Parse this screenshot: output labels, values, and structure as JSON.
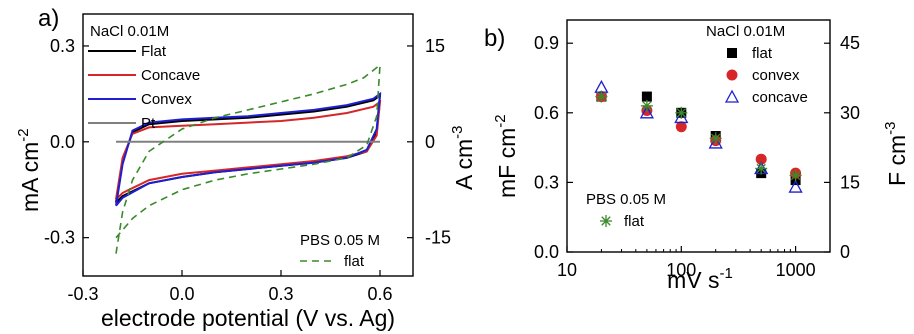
{
  "colors": {
    "flat": "#000000",
    "concave": "#d62728",
    "convex": "#1f1fd0",
    "pt": "#808080",
    "pbs": "#3a8a2a",
    "red_marker": "#d62728"
  },
  "chart_data": [
    {
      "type": "line",
      "panel_label": "a)",
      "xlabel": "electrode potential (V vs. Ag)",
      "ylabel": "mA cm",
      "ylabel_sup": "-2",
      "y2label": "A cm",
      "y2label_sup": "-3",
      "xlim": [
        -0.3,
        0.7
      ],
      "ylim": [
        -0.42,
        0.4
      ],
      "y2lim": [
        -21,
        20
      ],
      "xticks": [
        -0.3,
        0.0,
        0.3,
        0.6
      ],
      "xtick_labels": [
        "-0.3",
        "0.0",
        "0.3",
        "0.6"
      ],
      "yticks": [
        -0.3,
        0.0,
        0.3
      ],
      "ytick_labels": [
        "-0.3",
        "0.0",
        "0.3"
      ],
      "y2ticks": [
        -15,
        0,
        15
      ],
      "y2tick_labels": [
        "-15",
        "0",
        "15"
      ],
      "legend_title": "NaCl 0.01M",
      "legend2_title": "PBS 0.05 M",
      "series": [
        {
          "name": "Flat",
          "style": "solid",
          "color_key": "flat",
          "upper": [
            [
              -0.2,
              -0.19
            ],
            [
              -0.18,
              -0.06
            ],
            [
              -0.15,
              0.03
            ],
            [
              -0.1,
              0.055
            ],
            [
              0.0,
              0.065
            ],
            [
              0.1,
              0.07
            ],
            [
              0.2,
              0.075
            ],
            [
              0.3,
              0.085
            ],
            [
              0.4,
              0.095
            ],
            [
              0.5,
              0.11
            ],
            [
              0.58,
              0.13
            ],
            [
              0.6,
              0.145
            ]
          ],
          "lower": [
            [
              0.6,
              0.145
            ],
            [
              0.59,
              0.03
            ],
            [
              0.56,
              -0.03
            ],
            [
              0.5,
              -0.05
            ],
            [
              0.4,
              -0.065
            ],
            [
              0.3,
              -0.075
            ],
            [
              0.2,
              -0.085
            ],
            [
              0.1,
              -0.095
            ],
            [
              0.0,
              -0.11
            ],
            [
              -0.1,
              -0.13
            ],
            [
              -0.18,
              -0.17
            ],
            [
              -0.2,
              -0.19
            ]
          ]
        },
        {
          "name": "Concave",
          "style": "solid",
          "color_key": "concave",
          "upper": [
            [
              -0.2,
              -0.18
            ],
            [
              -0.18,
              -0.05
            ],
            [
              -0.15,
              0.025
            ],
            [
              -0.1,
              0.045
            ],
            [
              0.0,
              0.05
            ],
            [
              0.1,
              0.055
            ],
            [
              0.2,
              0.06
            ],
            [
              0.3,
              0.065
            ],
            [
              0.4,
              0.075
            ],
            [
              0.5,
              0.09
            ],
            [
              0.58,
              0.11
            ],
            [
              0.6,
              0.125
            ]
          ],
          "lower": [
            [
              0.6,
              0.125
            ],
            [
              0.59,
              0.02
            ],
            [
              0.56,
              -0.03
            ],
            [
              0.5,
              -0.045
            ],
            [
              0.4,
              -0.06
            ],
            [
              0.3,
              -0.07
            ],
            [
              0.2,
              -0.08
            ],
            [
              0.1,
              -0.09
            ],
            [
              0.0,
              -0.1
            ],
            [
              -0.1,
              -0.12
            ],
            [
              -0.18,
              -0.16
            ],
            [
              -0.2,
              -0.18
            ]
          ]
        },
        {
          "name": "Convex",
          "style": "solid",
          "color_key": "convex",
          "upper": [
            [
              -0.2,
              -0.2
            ],
            [
              -0.18,
              -0.07
            ],
            [
              -0.15,
              0.035
            ],
            [
              -0.1,
              0.06
            ],
            [
              0.0,
              0.07
            ],
            [
              0.1,
              0.075
            ],
            [
              0.2,
              0.08
            ],
            [
              0.3,
              0.09
            ],
            [
              0.4,
              0.1
            ],
            [
              0.5,
              0.115
            ],
            [
              0.58,
              0.135
            ],
            [
              0.6,
              0.15
            ]
          ],
          "lower": [
            [
              0.6,
              0.15
            ],
            [
              0.59,
              0.04
            ],
            [
              0.56,
              -0.025
            ],
            [
              0.5,
              -0.05
            ],
            [
              0.4,
              -0.065
            ],
            [
              0.3,
              -0.075
            ],
            [
              0.2,
              -0.085
            ],
            [
              0.1,
              -0.095
            ],
            [
              0.0,
              -0.11
            ],
            [
              -0.1,
              -0.13
            ],
            [
              -0.18,
              -0.175
            ],
            [
              -0.2,
              -0.2
            ]
          ]
        },
        {
          "name": "Pt",
          "style": "solid",
          "color_key": "pt",
          "upper": [
            [
              -0.2,
              0.0
            ],
            [
              0.6,
              0.0
            ]
          ],
          "lower": []
        },
        {
          "name": "flat",
          "style": "dashed",
          "color_key": "pbs",
          "upper": [
            [
              -0.2,
              -0.35
            ],
            [
              -0.18,
              -0.22
            ],
            [
              -0.15,
              -0.12
            ],
            [
              -0.1,
              -0.03
            ],
            [
              0.0,
              0.04
            ],
            [
              0.1,
              0.075
            ],
            [
              0.2,
              0.1
            ],
            [
              0.3,
              0.125
            ],
            [
              0.4,
              0.15
            ],
            [
              0.5,
              0.18
            ],
            [
              0.55,
              0.2
            ],
            [
              0.6,
              0.24
            ]
          ],
          "lower": [
            [
              0.6,
              0.24
            ],
            [
              0.59,
              0.08
            ],
            [
              0.56,
              -0.01
            ],
            [
              0.5,
              -0.05
            ],
            [
              0.4,
              -0.07
            ],
            [
              0.3,
              -0.085
            ],
            [
              0.2,
              -0.1
            ],
            [
              0.1,
              -0.12
            ],
            [
              0.0,
              -0.15
            ],
            [
              -0.1,
              -0.2
            ],
            [
              -0.15,
              -0.24
            ],
            [
              -0.2,
              -0.3
            ]
          ]
        }
      ]
    },
    {
      "type": "scatter",
      "panel_label": "b)",
      "xlabel": "mV s",
      "xlabel_sup": "-1",
      "ylabel": "mF cm",
      "ylabel_sup": "-2",
      "y2label": "F cm",
      "y2label_sup": "-3",
      "xscale": "log",
      "xlim": [
        10,
        2000
      ],
      "ylim": [
        0,
        1.0
      ],
      "y2lim": [
        0,
        50
      ],
      "xticks": [
        10,
        100,
        1000
      ],
      "xtick_labels": [
        "10",
        "100",
        "1000"
      ],
      "yticks": [
        0.0,
        0.3,
        0.6,
        0.9
      ],
      "ytick_labels": [
        "0.0",
        "0.3",
        "0.6",
        "0.9"
      ],
      "y2ticks": [
        0,
        15,
        30,
        45
      ],
      "y2tick_labels": [
        "0",
        "15",
        "30",
        "45"
      ],
      "legend_title": "NaCl 0.01M",
      "legend2_title": "PBS 0.05 M",
      "x": [
        20,
        50,
        100,
        200,
        500,
        1000
      ],
      "series": [
        {
          "name": "flat",
          "marker": "square",
          "color_key": "flat",
          "values": [
            0.67,
            0.67,
            0.6,
            0.5,
            0.34,
            0.31
          ]
        },
        {
          "name": "convex",
          "marker": "circle",
          "color_key": "red_marker",
          "values": [
            0.67,
            0.61,
            0.54,
            0.48,
            0.4,
            0.34
          ]
        },
        {
          "name": "concave",
          "marker": "triangle",
          "color_key": "convex",
          "values": [
            0.71,
            0.6,
            0.58,
            0.47,
            0.36,
            0.28
          ]
        },
        {
          "name": "flat",
          "marker": "star",
          "color_key": "pbs",
          "values": [
            0.67,
            0.63,
            0.6,
            0.49,
            0.36,
            0.33
          ]
        }
      ]
    }
  ]
}
